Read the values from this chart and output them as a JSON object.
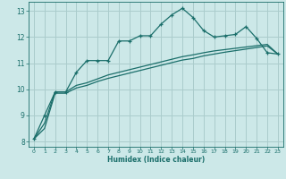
{
  "bg_color": "#cce8e8",
  "grid_color": "#aacccc",
  "line_color": "#1a6e6a",
  "xlabel": "Humidex (Indice chaleur)",
  "xlim": [
    -0.5,
    23.5
  ],
  "ylim": [
    7.8,
    13.35
  ],
  "yticks": [
    8,
    9,
    10,
    11,
    12,
    13
  ],
  "xticks": [
    0,
    1,
    2,
    3,
    4,
    5,
    6,
    7,
    8,
    9,
    10,
    11,
    12,
    13,
    14,
    15,
    16,
    17,
    18,
    19,
    20,
    21,
    22,
    23
  ],
  "curve1_x": [
    0,
    1,
    2,
    3,
    4,
    5,
    6,
    7,
    8,
    9,
    10,
    11,
    12,
    13,
    14,
    15,
    16,
    17,
    18,
    19,
    20,
    21,
    22,
    23
  ],
  "curve1_y": [
    8.1,
    9.0,
    9.9,
    9.9,
    10.65,
    11.1,
    11.1,
    11.1,
    11.85,
    11.85,
    12.05,
    12.05,
    12.5,
    12.85,
    13.1,
    12.75,
    12.25,
    12.0,
    12.05,
    12.1,
    12.4,
    11.95,
    11.4,
    11.35
  ],
  "curve2_x": [
    0,
    1,
    2,
    3,
    4,
    5,
    6,
    7,
    8,
    9,
    10,
    11,
    12,
    13,
    14,
    15,
    16,
    17,
    18,
    19,
    20,
    21,
    22,
    23
  ],
  "curve2_y": [
    8.1,
    8.7,
    9.9,
    9.9,
    10.15,
    10.25,
    10.4,
    10.55,
    10.65,
    10.75,
    10.85,
    10.95,
    11.05,
    11.15,
    11.25,
    11.32,
    11.4,
    11.47,
    11.52,
    11.57,
    11.62,
    11.67,
    11.72,
    11.35
  ],
  "curve3_x": [
    0,
    1,
    2,
    3,
    4,
    5,
    6,
    7,
    8,
    9,
    10,
    11,
    12,
    13,
    14,
    15,
    16,
    17,
    18,
    19,
    20,
    21,
    22,
    23
  ],
  "curve3_y": [
    8.1,
    8.5,
    9.85,
    9.85,
    10.05,
    10.15,
    10.3,
    10.42,
    10.52,
    10.62,
    10.72,
    10.82,
    10.92,
    11.02,
    11.12,
    11.18,
    11.28,
    11.35,
    11.42,
    11.48,
    11.54,
    11.6,
    11.66,
    11.35
  ]
}
